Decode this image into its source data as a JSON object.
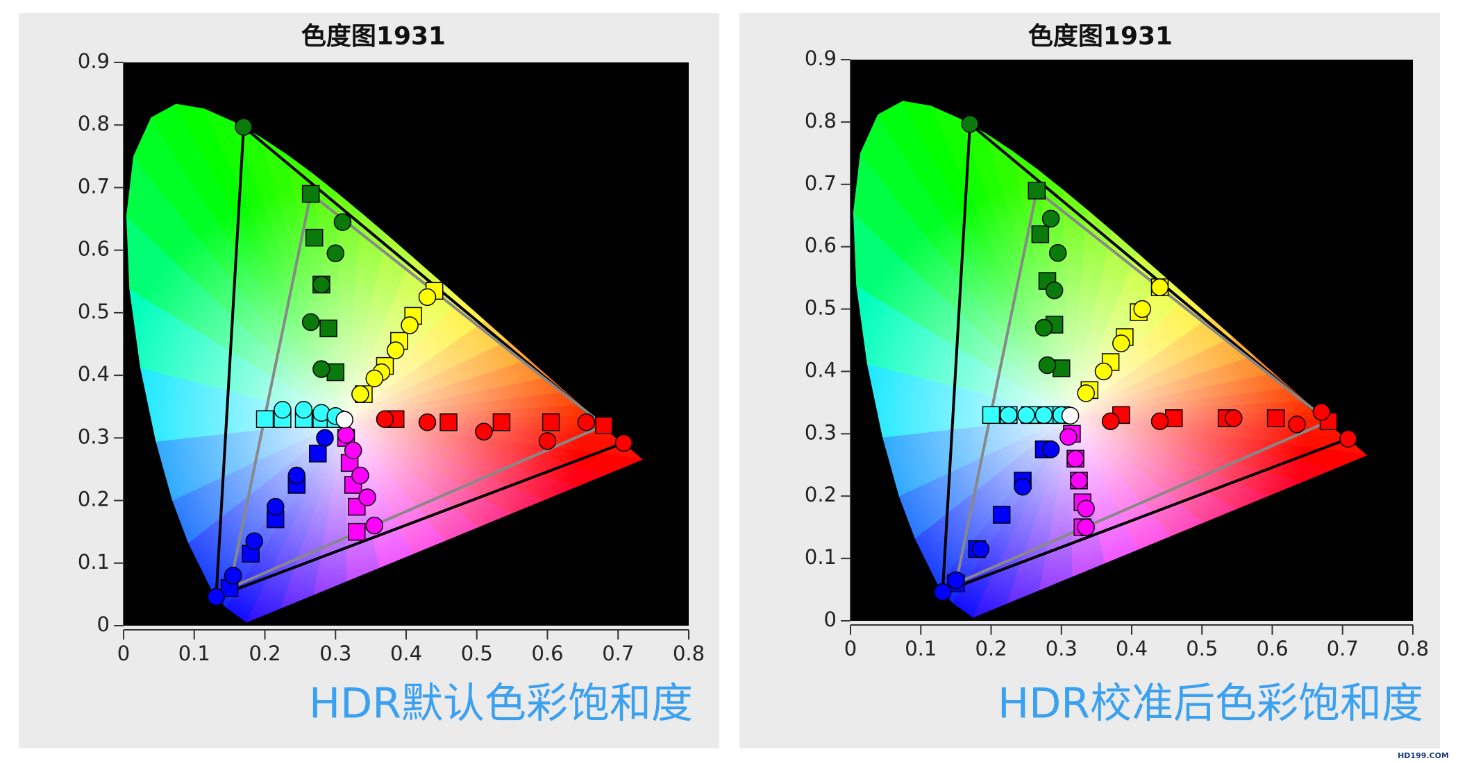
{
  "chart_data": [
    {
      "type": "scatter",
      "title": "色度图1931",
      "caption": "HDR默认色彩饱和度",
      "xlim": [
        0,
        0.8
      ],
      "ylim": [
        0,
        0.9
      ],
      "xticks": [
        0,
        0.1,
        0.2,
        0.3,
        0.4,
        0.5,
        0.6,
        0.7,
        0.8
      ],
      "yticks": [
        0,
        0.1,
        0.2,
        0.3,
        0.4,
        0.5,
        0.6,
        0.7,
        0.8,
        0.9
      ],
      "series": [
        {
          "marker": "line",
          "color": "#000000",
          "x": [
            0.708,
            0.17,
            0.131
          ],
          "y": [
            0.292,
            0.797,
            0.046
          ]
        },
        {
          "marker": "line",
          "color": "#888888",
          "x": [
            0.68,
            0.265,
            0.15
          ],
          "y": [
            0.32,
            0.69,
            0.06
          ]
        },
        {
          "marker": "square",
          "color": "#0a7a0a",
          "x": [
            0.265,
            0.27,
            0.28,
            0.29,
            0.3
          ],
          "y": [
            0.69,
            0.62,
            0.545,
            0.475,
            0.405
          ]
        },
        {
          "marker": "square",
          "color": "#ffff00",
          "x": [
            0.44,
            0.41,
            0.39,
            0.37,
            0.34
          ],
          "y": [
            0.535,
            0.495,
            0.455,
            0.415,
            0.37
          ]
        },
        {
          "marker": "square",
          "color": "#ff0000",
          "x": [
            0.68,
            0.605,
            0.535,
            0.46,
            0.385
          ],
          "y": [
            0.32,
            0.325,
            0.325,
            0.325,
            0.33
          ]
        },
        {
          "marker": "square",
          "color": "#33ffff",
          "x": [
            0.2,
            0.225,
            0.255,
            0.28,
            0.3
          ],
          "y": [
            0.33,
            0.33,
            0.33,
            0.33,
            0.33
          ]
        },
        {
          "marker": "square",
          "color": "#0000ff",
          "x": [
            0.15,
            0.18,
            0.215,
            0.245,
            0.275
          ],
          "y": [
            0.06,
            0.115,
            0.17,
            0.225,
            0.275
          ]
        },
        {
          "marker": "square",
          "color": "#ff00ff",
          "x": [
            0.33,
            0.33,
            0.325,
            0.32,
            0.315
          ],
          "y": [
            0.15,
            0.19,
            0.225,
            0.26,
            0.3
          ]
        },
        {
          "marker": "circle",
          "color": "#0a7a0a",
          "x": [
            0.17,
            0.31,
            0.3,
            0.28,
            0.265,
            0.28
          ],
          "y": [
            0.797,
            0.645,
            0.595,
            0.545,
            0.485,
            0.41
          ]
        },
        {
          "marker": "circle",
          "color": "#ffff00",
          "x": [
            0.43,
            0.405,
            0.385,
            0.365,
            0.355,
            0.335
          ],
          "y": [
            0.525,
            0.48,
            0.44,
            0.405,
            0.395,
            0.37
          ]
        },
        {
          "marker": "circle",
          "color": "#ff0000",
          "x": [
            0.708,
            0.655,
            0.6,
            0.51,
            0.43,
            0.37
          ],
          "y": [
            0.292,
            0.325,
            0.295,
            0.31,
            0.325,
            0.33
          ]
        },
        {
          "marker": "circle",
          "color": "#33ffff",
          "x": [
            0.225,
            0.255,
            0.28,
            0.3
          ],
          "y": [
            0.345,
            0.345,
            0.34,
            0.335
          ]
        },
        {
          "marker": "circle",
          "color": "#0000ff",
          "x": [
            0.131,
            0.155,
            0.185,
            0.215,
            0.245,
            0.285
          ],
          "y": [
            0.046,
            0.08,
            0.135,
            0.19,
            0.24,
            0.3
          ]
        },
        {
          "marker": "circle",
          "color": "#ff00ff",
          "x": [
            0.355,
            0.345,
            0.335,
            0.325,
            0.315
          ],
          "y": [
            0.16,
            0.205,
            0.24,
            0.28,
            0.305
          ]
        },
        {
          "marker": "circle",
          "color": "#ffffff",
          "x": [
            0.3127
          ],
          "y": [
            0.329
          ]
        }
      ]
    },
    {
      "type": "scatter",
      "title": "色度图1931",
      "caption": "HDR校准后色彩饱和度",
      "xlim": [
        0,
        0.8
      ],
      "ylim": [
        0,
        0.9
      ],
      "xticks": [
        0,
        0.1,
        0.2,
        0.3,
        0.4,
        0.5,
        0.6,
        0.7,
        0.8
      ],
      "yticks": [
        0,
        0.1,
        0.2,
        0.3,
        0.4,
        0.5,
        0.6,
        0.7,
        0.8,
        0.9
      ],
      "series": [
        {
          "marker": "line",
          "color": "#000000",
          "x": [
            0.708,
            0.17,
            0.131
          ],
          "y": [
            0.292,
            0.797,
            0.046
          ]
        },
        {
          "marker": "line",
          "color": "#888888",
          "x": [
            0.68,
            0.265,
            0.15
          ],
          "y": [
            0.32,
            0.69,
            0.06
          ]
        },
        {
          "marker": "square",
          "color": "#0a7a0a",
          "x": [
            0.265,
            0.27,
            0.28,
            0.29,
            0.3
          ],
          "y": [
            0.69,
            0.62,
            0.545,
            0.475,
            0.405
          ]
        },
        {
          "marker": "square",
          "color": "#ffff00",
          "x": [
            0.44,
            0.41,
            0.39,
            0.37,
            0.34
          ],
          "y": [
            0.535,
            0.495,
            0.455,
            0.415,
            0.37
          ]
        },
        {
          "marker": "square",
          "color": "#ff0000",
          "x": [
            0.68,
            0.605,
            0.535,
            0.46,
            0.385
          ],
          "y": [
            0.32,
            0.325,
            0.325,
            0.325,
            0.33
          ]
        },
        {
          "marker": "square",
          "color": "#33ffff",
          "x": [
            0.2,
            0.225,
            0.255,
            0.28,
            0.3
          ],
          "y": [
            0.33,
            0.33,
            0.33,
            0.33,
            0.33
          ]
        },
        {
          "marker": "square",
          "color": "#0000ff",
          "x": [
            0.15,
            0.18,
            0.215,
            0.245,
            0.275
          ],
          "y": [
            0.06,
            0.115,
            0.17,
            0.225,
            0.275
          ]
        },
        {
          "marker": "square",
          "color": "#ff00ff",
          "x": [
            0.33,
            0.33,
            0.325,
            0.32,
            0.315
          ],
          "y": [
            0.15,
            0.19,
            0.225,
            0.26,
            0.3
          ]
        },
        {
          "marker": "circle",
          "color": "#0a7a0a",
          "x": [
            0.17,
            0.285,
            0.295,
            0.29,
            0.275,
            0.28
          ],
          "y": [
            0.797,
            0.645,
            0.59,
            0.53,
            0.47,
            0.41
          ]
        },
        {
          "marker": "circle",
          "color": "#ffff00",
          "x": [
            0.44,
            0.415,
            0.385,
            0.36,
            0.335
          ],
          "y": [
            0.535,
            0.5,
            0.445,
            0.4,
            0.365
          ]
        },
        {
          "marker": "circle",
          "color": "#ff0000",
          "x": [
            0.708,
            0.67,
            0.635,
            0.545,
            0.44,
            0.37
          ],
          "y": [
            0.292,
            0.335,
            0.315,
            0.325,
            0.32,
            0.32
          ]
        },
        {
          "marker": "circle",
          "color": "#33ffff",
          "x": [
            0.225,
            0.25,
            0.275,
            0.3
          ],
          "y": [
            0.33,
            0.33,
            0.33,
            0.33
          ]
        },
        {
          "marker": "circle",
          "color": "#0000ff",
          "x": [
            0.131,
            0.15,
            0.185,
            0.245,
            0.285
          ],
          "y": [
            0.046,
            0.065,
            0.115,
            0.215,
            0.275
          ]
        },
        {
          "marker": "circle",
          "color": "#ff00ff",
          "x": [
            0.335,
            0.335,
            0.325,
            0.32,
            0.31
          ],
          "y": [
            0.15,
            0.18,
            0.225,
            0.26,
            0.295
          ]
        },
        {
          "marker": "circle",
          "color": "#ffffff",
          "x": [
            0.3127
          ],
          "y": [
            0.329
          ]
        }
      ]
    }
  ],
  "watermark": "HD199.COM"
}
